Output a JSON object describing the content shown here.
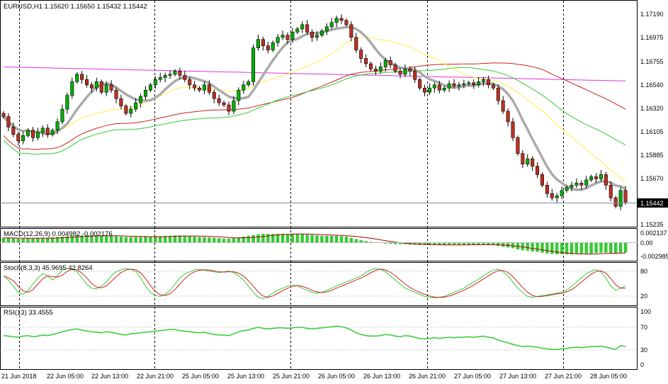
{
  "symbol_header": "EURUSD,H1  1.15620 1.15650 1.15432 1.15442",
  "current_price_label": "1.15442",
  "colors": {
    "background": "#ffffff",
    "grid": "#000000",
    "bull_candle": "#00b000",
    "bear_candle": "#c03020",
    "ma_fast": "#aaaaaa",
    "ma_yellow": "#ffee44",
    "ma_green": "#33cc33",
    "ma_red": "#cc2222",
    "ma_magenta": "#dd33dd",
    "macd_hist": "#33cc33",
    "macd_signal": "#aa0000",
    "stoch_main": "#33cc33",
    "stoch_signal": "#cc2222",
    "rsi_line": "#33cc33",
    "price_label_bg": "#000000"
  },
  "price_axis": {
    "ticks": [
      "1.17190",
      "1.16975",
      "1.16755",
      "1.16540",
      "1.16320",
      "1.16105",
      "1.15885",
      "1.15670",
      "1.15442",
      "1.15235"
    ],
    "min": 1.1522,
    "max": 1.1732
  },
  "macd": {
    "label": "MACD(12,26,9) 0.004982 -0.002176",
    "ticks": [
      "0.002137",
      "0.00",
      "-0.002985"
    ]
  },
  "stoch": {
    "label": "Stoch(8,3,3) 45.9695 42.8264",
    "ticks": [
      "80",
      "20"
    ]
  },
  "rsi": {
    "label": "RSI(13) 33.4555",
    "ticks": [
      "100",
      "70",
      "30",
      "0"
    ]
  },
  "time_axis": [
    "21 Jun 2018",
    "22 Jun 05:00",
    "22 Jun 13:00",
    "22 Jun 21:00",
    "25 Jun 05:00",
    "25 Jun 13:00",
    "25 Jun 21:00",
    "26 Jun 05:00",
    "26 Jun 13:00",
    "26 Jun 21:00",
    "27 Jun 05:00",
    "27 Jun 13:00",
    "27 Jun 21:00",
    "28 Jun 05:00"
  ],
  "chart_data": {
    "type": "candlestick",
    "title": "EURUSD,H1",
    "price_range": [
      1.1522,
      1.1732
    ],
    "close_series": [
      1.1625,
      1.1615,
      1.1608,
      1.1602,
      1.1607,
      1.1612,
      1.1605,
      1.161,
      1.1614,
      1.1608,
      1.1612,
      1.162,
      1.1632,
      1.1645,
      1.1658,
      1.1665,
      1.166,
      1.1655,
      1.1652,
      1.1658,
      1.1648,
      1.1655,
      1.165,
      1.1642,
      1.1635,
      1.1628,
      1.1632,
      1.1638,
      1.1644,
      1.165,
      1.1655,
      1.166,
      1.1662,
      1.1664,
      1.1665,
      1.1668,
      1.1664,
      1.166,
      1.1655,
      1.1652,
      1.165,
      1.1655,
      1.1648,
      1.1642,
      1.1638,
      1.1636,
      1.163,
      1.164,
      1.165,
      1.1655,
      1.1658,
      1.169,
      1.1698,
      1.1692,
      1.1688,
      1.1695,
      1.17,
      1.1702,
      1.1698,
      1.1705,
      1.1708,
      1.1712,
      1.1705,
      1.17,
      1.1702,
      1.1706,
      1.171,
      1.1714,
      1.1718,
      1.1716,
      1.1712,
      1.17,
      1.1688,
      1.168,
      1.1675,
      1.167,
      1.1668,
      1.1672,
      1.1678,
      1.1674,
      1.1668,
      1.1665,
      1.167,
      1.1668,
      1.166,
      1.1652,
      1.1648,
      1.1652,
      1.1655,
      1.165,
      1.1652,
      1.1656,
      1.1654,
      1.1655,
      1.1656,
      1.1657,
      1.1655,
      1.1658,
      1.166,
      1.1655,
      1.1652,
      1.164,
      1.163,
      1.162,
      1.1605,
      1.159,
      1.158,
      1.1585,
      1.1578,
      1.157,
      1.156,
      1.1552,
      1.1548,
      1.155,
      1.1555,
      1.1558,
      1.156,
      1.1562,
      1.156,
      1.1565,
      1.1568,
      1.1566,
      1.157,
      1.156,
      1.1548,
      1.154,
      1.1555,
      1.1544
    ],
    "overlays": [
      "moving averages (gray, yellow, green, red, magenta)"
    ],
    "indicators": [
      "MACD(12,26,9)",
      "Stoch(8,3,3)",
      "RSI(13)"
    ],
    "rsi_values": [
      53,
      52,
      51,
      50,
      52,
      53,
      51,
      52,
      54,
      53,
      55,
      57,
      60,
      62,
      64,
      65,
      63,
      61,
      60,
      59,
      58,
      60,
      59,
      57,
      55,
      54,
      56,
      57,
      58,
      59,
      60,
      61,
      62,
      63,
      64,
      64,
      62,
      61,
      60,
      59,
      58,
      59,
      57,
      55,
      54,
      54,
      53,
      56,
      60,
      62,
      63,
      66,
      68,
      66,
      65,
      66,
      67,
      67,
      66,
      67,
      68,
      68,
      66,
      65,
      66,
      67,
      68,
      69,
      70,
      69,
      67,
      63,
      58,
      55,
      53,
      52,
      52,
      53,
      55,
      54,
      52,
      51,
      53,
      52,
      50,
      48,
      47,
      48,
      49,
      48,
      49,
      50,
      49,
      50,
      50,
      51,
      50,
      51,
      52,
      50,
      49,
      45,
      42,
      40,
      37,
      35,
      33,
      34,
      33,
      32,
      30,
      29,
      28,
      28,
      29,
      30,
      31,
      32,
      31,
      32,
      33,
      33,
      34,
      32,
      30,
      28,
      35,
      33
    ],
    "stoch_main": [
      70,
      60,
      45,
      30,
      25,
      35,
      50,
      65,
      75,
      70,
      60,
      70,
      85,
      88,
      86,
      80,
      65,
      50,
      40,
      38,
      45,
      55,
      70,
      80,
      85,
      88,
      86,
      80,
      65,
      45,
      30,
      22,
      20,
      25,
      35,
      50,
      65,
      75,
      80,
      85,
      86,
      84,
      82,
      80,
      78,
      80,
      82,
      78,
      70,
      60,
      45,
      30,
      18,
      15,
      20,
      28,
      35,
      40,
      45,
      48,
      46,
      40,
      35,
      30,
      28,
      30,
      35,
      40,
      45,
      50,
      55,
      60,
      65,
      70,
      78,
      85,
      88,
      86,
      80,
      70,
      60,
      50,
      40,
      35,
      30,
      25,
      20,
      18,
      17,
      18,
      20,
      25,
      30,
      35,
      40,
      48,
      55,
      62,
      70,
      78,
      84,
      86,
      80,
      70,
      55,
      40,
      30,
      20,
      18,
      20,
      22,
      24,
      26,
      28,
      30,
      35,
      45,
      55,
      65,
      75,
      82,
      85,
      80,
      65,
      45,
      35,
      40,
      46
    ],
    "macd_hist": [
      0.0012,
      0.0012,
      0.0011,
      0.001,
      0.001,
      0.0011,
      0.0011,
      0.0012,
      0.0012,
      0.0012,
      0.0013,
      0.0014,
      0.0015,
      0.0016,
      0.0017,
      0.0018,
      0.0018,
      0.0018,
      0.0017,
      0.0017,
      0.0017,
      0.0017,
      0.0017,
      0.0016,
      0.0015,
      0.0014,
      0.0014,
      0.0014,
      0.0014,
      0.0015,
      0.0015,
      0.0016,
      0.0016,
      0.0017,
      0.0017,
      0.0018,
      0.0018,
      0.0017,
      0.0016,
      0.0015,
      0.0014,
      0.0014,
      0.0013,
      0.0012,
      0.0011,
      0.001,
      0.001,
      0.0011,
      0.0013,
      0.0015,
      0.0017,
      0.0019,
      0.0021,
      0.0022,
      0.0022,
      0.0022,
      0.0022,
      0.0022,
      0.0021,
      0.0021,
      0.0021,
      0.0021,
      0.002,
      0.0019,
      0.0018,
      0.0017,
      0.0017,
      0.0017,
      0.0017,
      0.0016,
      0.0015,
      0.0012,
      0.0009,
      0.0006,
      0.0004,
      0.0002,
      0.0,
      -0.0001,
      -0.0002,
      -0.0003,
      -0.0004,
      -0.0004,
      -0.0004,
      -0.0005,
      -0.0005,
      -0.0006,
      -0.0006,
      -0.0006,
      -0.0006,
      -0.0006,
      -0.0006,
      -0.0005,
      -0.0005,
      -0.0005,
      -0.0005,
      -0.0005,
      -0.0005,
      -0.0005,
      -0.0005,
      -0.0005,
      -0.0006,
      -0.0008,
      -0.001,
      -0.0012,
      -0.0014,
      -0.0017,
      -0.0019,
      -0.002,
      -0.0022,
      -0.0023,
      -0.0025,
      -0.0027,
      -0.0028,
      -0.0029,
      -0.0029,
      -0.0029,
      -0.0029,
      -0.0028,
      -0.0028,
      -0.0027,
      -0.0027,
      -0.0026,
      -0.0025,
      -0.0025,
      -0.0026,
      -0.0026,
      -0.0025,
      -0.0025
    ]
  }
}
